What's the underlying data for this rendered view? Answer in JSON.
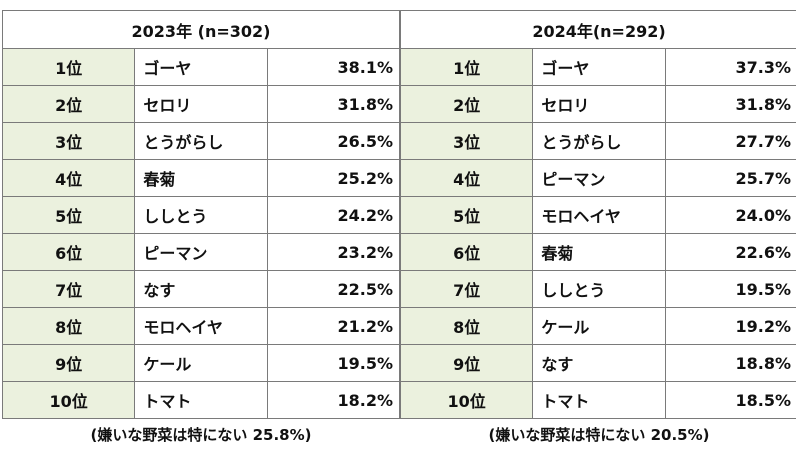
{
  "tables": [
    {
      "header": "2023年 (n=302)",
      "rows": [
        {
          "rank": "1位",
          "item": "ゴーヤ",
          "pct": "38.1%"
        },
        {
          "rank": "2位",
          "item": "セロリ",
          "pct": "31.8%"
        },
        {
          "rank": "3位",
          "item": "とうがらし",
          "pct": "26.5%"
        },
        {
          "rank": "4位",
          "item": "春菊",
          "pct": "25.2%"
        },
        {
          "rank": "5位",
          "item": "ししとう",
          "pct": "24.2%"
        },
        {
          "rank": "6位",
          "item": "ピーマン",
          "pct": "23.2%"
        },
        {
          "rank": "7位",
          "item": "なす",
          "pct": "22.5%"
        },
        {
          "rank": "8位",
          "item": "モロヘイヤ",
          "pct": "21.2%"
        },
        {
          "rank": "9位",
          "item": "ケール",
          "pct": "19.5%"
        },
        {
          "rank": "10位",
          "item": "トマト",
          "pct": "18.2%"
        }
      ],
      "footnote": "(嫌いな野菜は特にない 25.8%)"
    },
    {
      "header": "2024年(n=292)",
      "rows": [
        {
          "rank": "1位",
          "item": "ゴーヤ",
          "pct": "37.3%"
        },
        {
          "rank": "2位",
          "item": "セロリ",
          "pct": "31.8%"
        },
        {
          "rank": "3位",
          "item": "とうがらし",
          "pct": "27.7%"
        },
        {
          "rank": "4位",
          "item": "ピーマン",
          "pct": "25.7%"
        },
        {
          "rank": "5位",
          "item": "モロヘイヤ",
          "pct": "24.0%"
        },
        {
          "rank": "6位",
          "item": "春菊",
          "pct": "22.6%"
        },
        {
          "rank": "7位",
          "item": "ししとう",
          "pct": "19.5%"
        },
        {
          "rank": "8位",
          "item": "ケール",
          "pct": "19.2%"
        },
        {
          "rank": "9位",
          "item": "なす",
          "pct": "18.8%"
        },
        {
          "rank": "10位",
          "item": "トマト",
          "pct": "18.5%"
        }
      ],
      "footnote": "(嫌いな野菜は特にない 20.5%)"
    }
  ],
  "colors": {
    "rank_bg": "#ebf1de",
    "border": "#7a7a7a"
  }
}
